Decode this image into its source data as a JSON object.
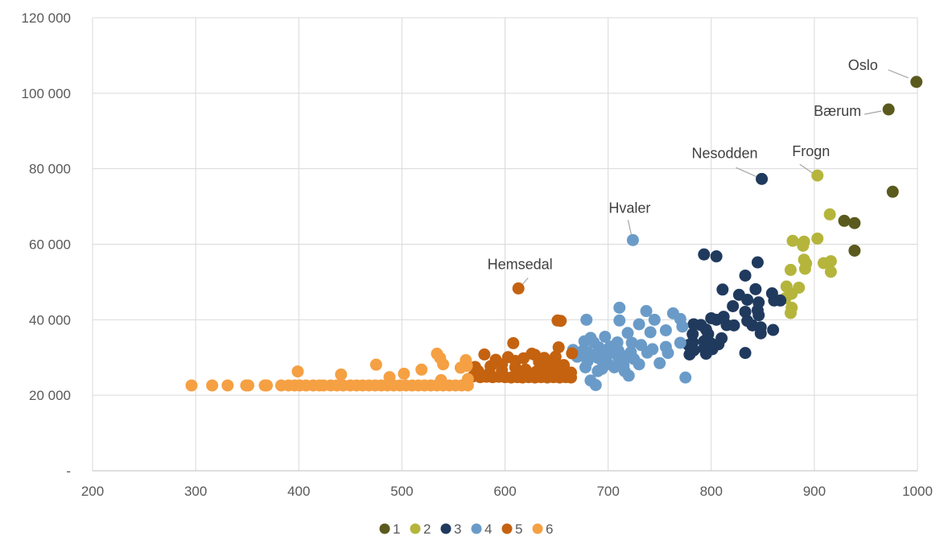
{
  "chart_data": {
    "type": "scatter",
    "title": "",
    "xlabel": "",
    "ylabel": "",
    "xlim": [
      200,
      1000
    ],
    "ylim": [
      0,
      120000
    ],
    "x_ticks": [
      200,
      300,
      400,
      500,
      600,
      700,
      800,
      900,
      1000
    ],
    "y_ticks": [
      0,
      20000,
      40000,
      60000,
      80000,
      100000,
      120000
    ],
    "x_tick_labels": [
      "200",
      "300",
      "400",
      "500",
      "600",
      "700",
      "800",
      "900",
      "1000"
    ],
    "y_tick_labels": [
      "-",
      "20 000",
      "40 000",
      "60 000",
      "80 000",
      "100 000",
      "120 000"
    ],
    "grid": true,
    "legend_position": "bottom",
    "series": [
      {
        "name": "1",
        "color": "#5a5a1e",
        "points": [
          [
            999,
            103000
          ],
          [
            972,
            95700
          ],
          [
            976,
            73900
          ],
          [
            929,
            66200
          ],
          [
            939,
            65600
          ],
          [
            939,
            58300
          ]
        ]
      },
      {
        "name": "2",
        "color": "#b5b53c",
        "points": [
          [
            903,
            78200
          ],
          [
            915,
            67900
          ],
          [
            879,
            60900
          ],
          [
            890,
            60700
          ],
          [
            903,
            61500
          ],
          [
            889,
            59600
          ],
          [
            890,
            55900
          ],
          [
            909,
            55000
          ],
          [
            916,
            55500
          ],
          [
            892,
            54900
          ],
          [
            877,
            53200
          ],
          [
            891,
            53500
          ],
          [
            916,
            52700
          ],
          [
            873,
            48800
          ],
          [
            885,
            48500
          ],
          [
            878,
            46900
          ],
          [
            872,
            45700
          ],
          [
            878,
            43200
          ],
          [
            877,
            41800
          ]
        ]
      },
      {
        "name": "3",
        "color": "#203a5e",
        "points": [
          [
            849,
            77300
          ],
          [
            793,
            57300
          ],
          [
            805,
            56800
          ],
          [
            845,
            55200
          ],
          [
            833,
            51700
          ],
          [
            811,
            48000
          ],
          [
            843,
            48100
          ],
          [
            827,
            46600
          ],
          [
            859,
            47000
          ],
          [
            861,
            45100
          ],
          [
            835,
            45300
          ],
          [
            867,
            45100
          ],
          [
            846,
            44600
          ],
          [
            821,
            43600
          ],
          [
            845,
            42500
          ],
          [
            833,
            42100
          ],
          [
            846,
            41200
          ],
          [
            812,
            40800
          ],
          [
            800,
            40400
          ],
          [
            835,
            39700
          ],
          [
            805,
            40000
          ],
          [
            790,
            38600
          ],
          [
            783,
            38800
          ],
          [
            815,
            38600
          ],
          [
            840,
            38500
          ],
          [
            822,
            38500
          ],
          [
            848,
            38000
          ],
          [
            860,
            37300
          ],
          [
            795,
            37400
          ],
          [
            848,
            36400
          ],
          [
            782,
            36200
          ],
          [
            797,
            36200
          ],
          [
            810,
            35100
          ],
          [
            793,
            34300
          ],
          [
            782,
            34000
          ],
          [
            800,
            33700
          ],
          [
            807,
            33500
          ],
          [
            778,
            33300
          ],
          [
            793,
            32400
          ],
          [
            801,
            32200
          ],
          [
            783,
            31900
          ],
          [
            779,
            30800
          ],
          [
            795,
            31000
          ],
          [
            833,
            31200
          ]
        ]
      },
      {
        "name": "4",
        "color": "#6a9bc8",
        "points": [
          [
            724,
            61100
          ],
          [
            711,
            43200
          ],
          [
            737,
            42300
          ],
          [
            763,
            41700
          ],
          [
            770,
            40200
          ],
          [
            679,
            40000
          ],
          [
            711,
            39800
          ],
          [
            745,
            40000
          ],
          [
            772,
            38200
          ],
          [
            730,
            38800
          ],
          [
            756,
            37200
          ],
          [
            741,
            36700
          ],
          [
            719,
            36500
          ],
          [
            697,
            35500
          ],
          [
            683,
            35200
          ],
          [
            677,
            34300
          ],
          [
            686,
            34000
          ],
          [
            709,
            34000
          ],
          [
            723,
            33900
          ],
          [
            770,
            33900
          ],
          [
            732,
            33300
          ],
          [
            756,
            32800
          ],
          [
            702,
            32900
          ],
          [
            691,
            32700
          ],
          [
            743,
            32200
          ],
          [
            666,
            32000
          ],
          [
            676,
            31900
          ],
          [
            710,
            31800
          ],
          [
            680,
            31400
          ],
          [
            695,
            31300
          ],
          [
            722,
            31400
          ],
          [
            738,
            31300
          ],
          [
            758,
            31200
          ],
          [
            700,
            30900
          ],
          [
            685,
            30700
          ],
          [
            673,
            30600
          ],
          [
            719,
            30500
          ],
          [
            670,
            30200
          ],
          [
            690,
            29900
          ],
          [
            710,
            30000
          ],
          [
            694,
            29700
          ],
          [
            725,
            29600
          ],
          [
            715,
            29200
          ],
          [
            680,
            29000
          ],
          [
            750,
            28500
          ],
          [
            700,
            28300
          ],
          [
            730,
            28200
          ],
          [
            715,
            27900
          ],
          [
            695,
            27700
          ],
          [
            678,
            27400
          ],
          [
            706,
            27400
          ],
          [
            694,
            27000
          ],
          [
            690,
            26400
          ],
          [
            716,
            26400
          ],
          [
            720,
            25200
          ],
          [
            775,
            24700
          ],
          [
            683,
            23900
          ],
          [
            688,
            22700
          ]
        ]
      },
      {
        "name": "5",
        "color": "#c46210",
        "points": [
          [
            613,
            48300
          ],
          [
            651,
            39800
          ],
          [
            654,
            39700
          ],
          [
            608,
            33800
          ],
          [
            652,
            32700
          ],
          [
            626,
            31000
          ],
          [
            580,
            30800
          ],
          [
            629,
            30700
          ],
          [
            665,
            31100
          ],
          [
            603,
            30100
          ],
          [
            649,
            30200
          ],
          [
            618,
            29800
          ],
          [
            638,
            29900
          ],
          [
            591,
            29400
          ],
          [
            610,
            29100
          ],
          [
            633,
            28800
          ],
          [
            646,
            28700
          ],
          [
            597,
            28200
          ],
          [
            657,
            28000
          ],
          [
            571,
            27500
          ],
          [
            586,
            27700
          ],
          [
            610,
            27400
          ],
          [
            640,
            27400
          ],
          [
            654,
            26900
          ],
          [
            620,
            26800
          ],
          [
            574,
            26400
          ],
          [
            597,
            26600
          ],
          [
            630,
            26200
          ],
          [
            646,
            26300
          ],
          [
            664,
            26000
          ],
          [
            585,
            25900
          ],
          [
            569,
            25000
          ],
          [
            576,
            24800
          ],
          [
            582,
            24900
          ],
          [
            588,
            24800
          ],
          [
            594,
            24900
          ],
          [
            600,
            24800
          ],
          [
            606,
            24700
          ],
          [
            612,
            24800
          ],
          [
            617,
            24700
          ],
          [
            623,
            24800
          ],
          [
            629,
            24700
          ],
          [
            635,
            24800
          ],
          [
            641,
            24700
          ],
          [
            647,
            24800
          ],
          [
            653,
            24700
          ],
          [
            659,
            24800
          ],
          [
            664,
            24700
          ]
        ]
      },
      {
        "name": "6",
        "color": "#f5a043",
        "points": [
          [
            296,
            22600
          ],
          [
            316,
            22600
          ],
          [
            331,
            22600
          ],
          [
            349,
            22600
          ],
          [
            351,
            22600
          ],
          [
            367,
            22600
          ],
          [
            369,
            22600
          ],
          [
            383,
            22600
          ],
          [
            390,
            22600
          ],
          [
            396,
            22600
          ],
          [
            401,
            22600
          ],
          [
            407,
            22600
          ],
          [
            414,
            22600
          ],
          [
            420,
            22600
          ],
          [
            424,
            22600
          ],
          [
            431,
            22600
          ],
          [
            437,
            22600
          ],
          [
            443,
            22600
          ],
          [
            450,
            22600
          ],
          [
            456,
            22600
          ],
          [
            462,
            22600
          ],
          [
            468,
            22600
          ],
          [
            474,
            22600
          ],
          [
            480,
            22600
          ],
          [
            486,
            22600
          ],
          [
            492,
            22600
          ],
          [
            498,
            22600
          ],
          [
            504,
            22600
          ],
          [
            510,
            22600
          ],
          [
            516,
            22600
          ],
          [
            522,
            22600
          ],
          [
            528,
            22600
          ],
          [
            534,
            22600
          ],
          [
            540,
            22600
          ],
          [
            546,
            22600
          ],
          [
            552,
            22600
          ],
          [
            558,
            22600
          ],
          [
            564,
            22600
          ],
          [
            399,
            26300
          ],
          [
            441,
            25500
          ],
          [
            475,
            28100
          ],
          [
            488,
            24800
          ],
          [
            502,
            25700
          ],
          [
            519,
            26800
          ],
          [
            534,
            31000
          ],
          [
            537,
            29900
          ],
          [
            540,
            28200
          ],
          [
            538,
            24000
          ],
          [
            557,
            27300
          ],
          [
            562,
            29300
          ],
          [
            563,
            27800
          ],
          [
            564,
            24300
          ],
          [
            563,
            23400
          ]
        ]
      }
    ],
    "annotations": [
      {
        "text": "Oslo",
        "point": [
          999,
          103000
        ]
      },
      {
        "text": "Bærum",
        "point": [
          972,
          95700
        ]
      },
      {
        "text": "Frogn",
        "point": [
          903,
          78200
        ]
      },
      {
        "text": "Nesodden",
        "point": [
          849,
          77300
        ]
      },
      {
        "text": "Hvaler",
        "point": [
          724,
          61100
        ]
      },
      {
        "text": "Hemsedal",
        "point": [
          613,
          48300
        ]
      }
    ]
  }
}
